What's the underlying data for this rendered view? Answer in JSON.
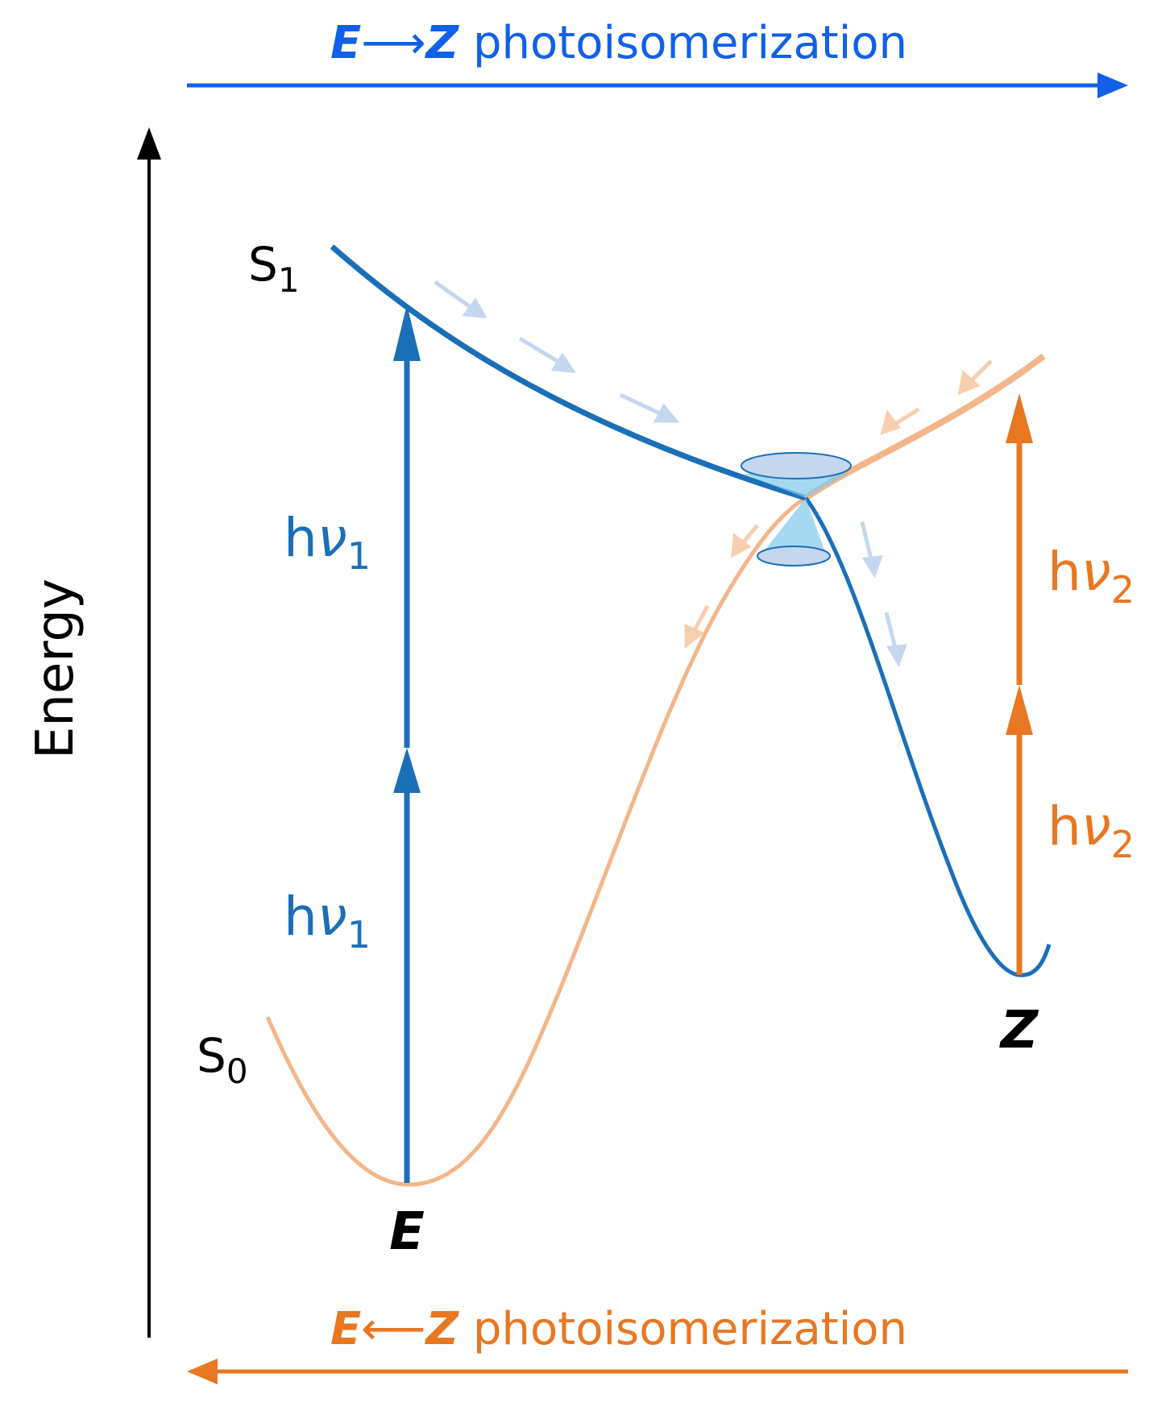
{
  "title_top": {
    "E": "E",
    "arrow": "⟶",
    "Z": "Z",
    "text": " photoisomerization"
  },
  "title_bottom": {
    "E": "E",
    "arrow": "⟵",
    "Z": "Z",
    "text": " photoisomerization"
  },
  "axis": {
    "label": "Energy"
  },
  "states": {
    "s1": "S",
    "s1_sub": "1",
    "s0": "S",
    "s0_sub": "0"
  },
  "isomers": {
    "E": "E",
    "Z": "Z"
  },
  "photon_blue": {
    "h": "h",
    "nu": "ν",
    "sub": "1"
  },
  "photon_orange": {
    "h": "h",
    "nu": "ν",
    "sub": "2"
  },
  "colors": {
    "blue": "#1a6fb8",
    "bright_blue": "#1060e8",
    "orange": "#e87722",
    "light_orange": "#f3b58a",
    "faint_blue": "#c5d7ee",
    "faint_orange": "#f7cfb0",
    "ci_fill": "#7fc9ec",
    "black": "#000000"
  }
}
